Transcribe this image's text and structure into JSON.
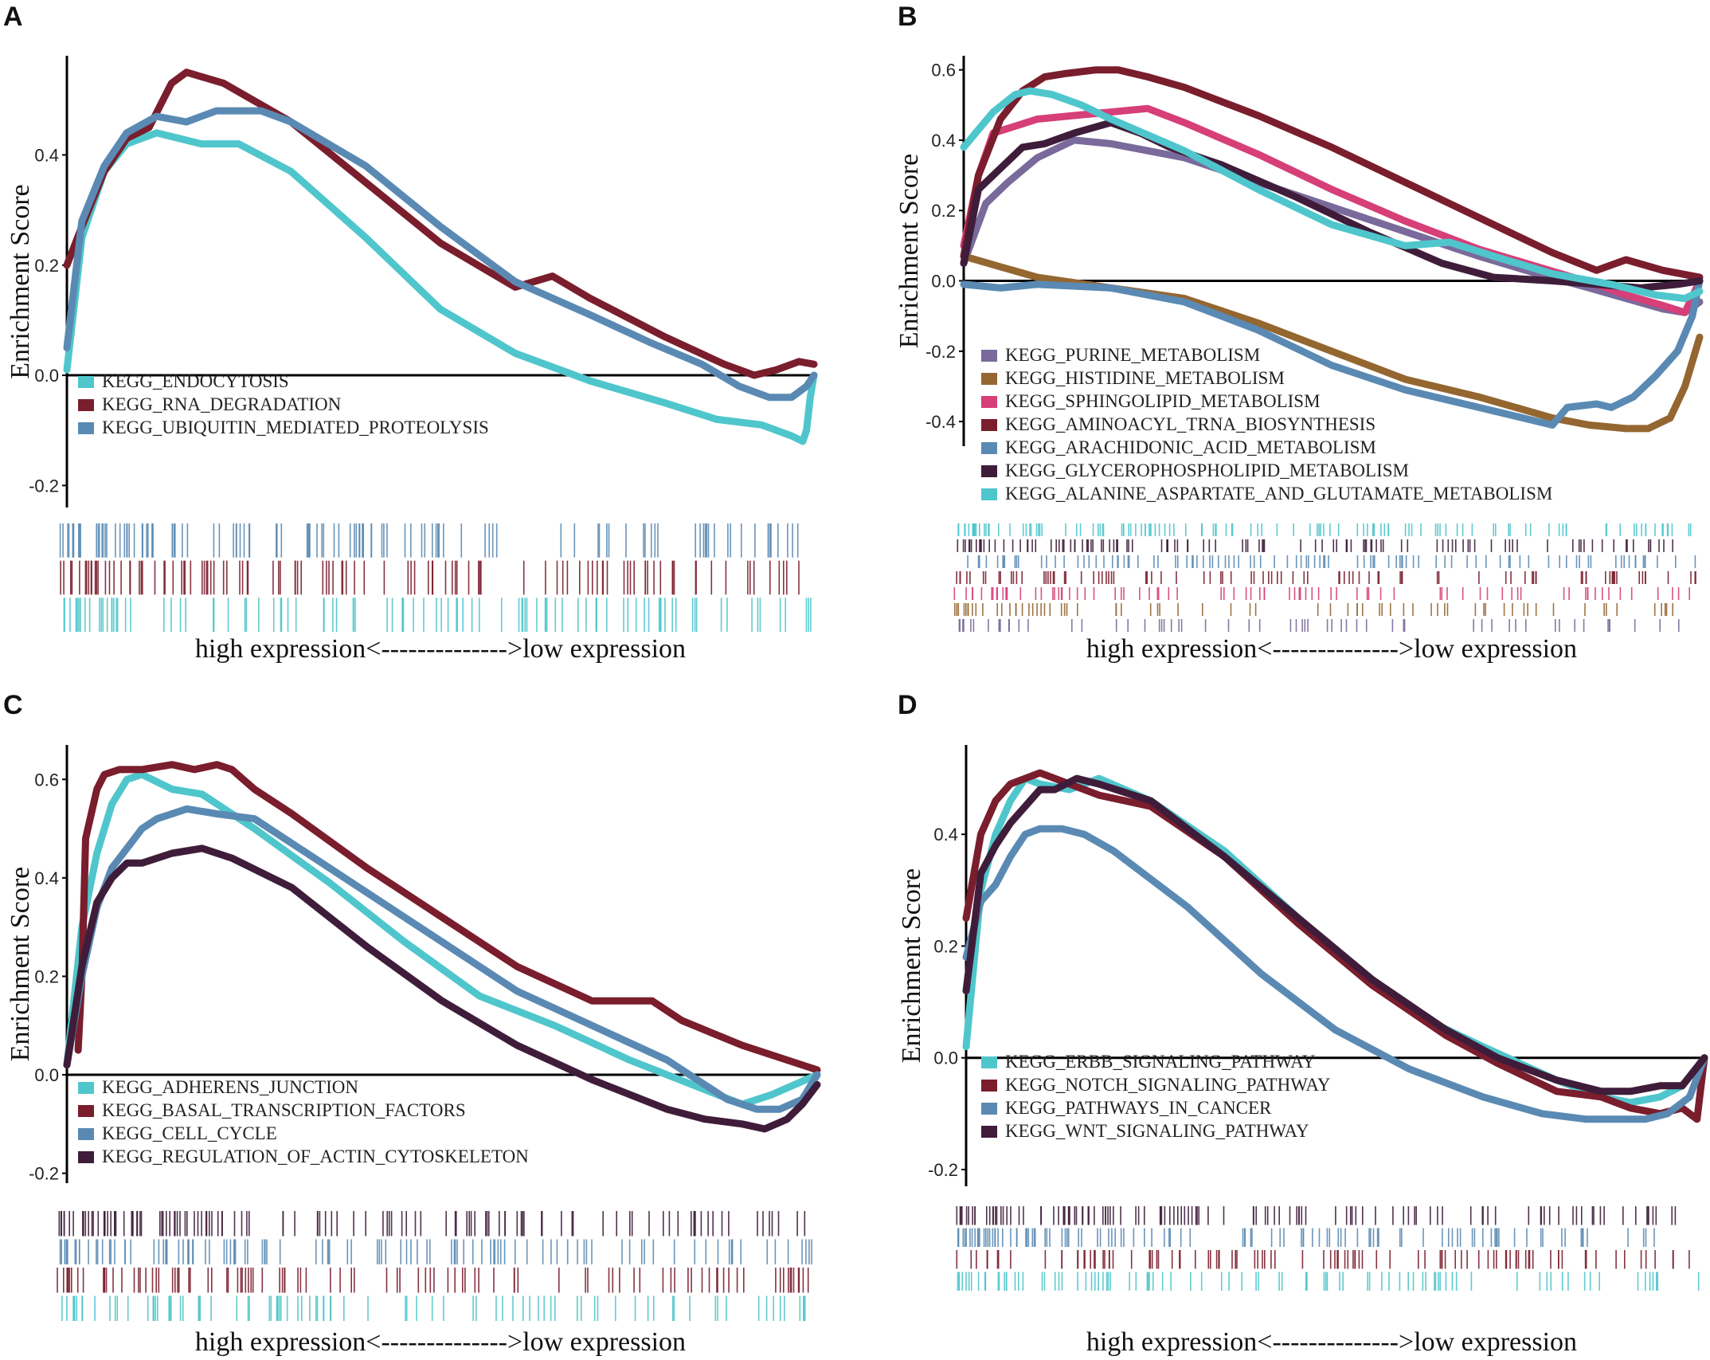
{
  "figure": {
    "colors": {
      "cyan": "#4fc6cc",
      "maroon": "#7a1d2c",
      "steel": "#5a8ab3",
      "purple": "#7a6a9b",
      "brown": "#946630",
      "pink": "#d63f78",
      "darkplum": "#3f1d3a",
      "axis": "#000000"
    }
  },
  "chart_data": [
    {
      "panel": "A",
      "type": "line",
      "ylabel": "Enrichment Score",
      "bottom_caption": "high expression<-------------->low expression",
      "ylim": [
        -0.24,
        0.58
      ],
      "yticks": [
        {
          "v": 0.4,
          "label": "0.4"
        },
        {
          "v": 0.2,
          "label": "0.2"
        },
        {
          "v": 0.0,
          "label": "0.0"
        },
        {
          "v": -0.2,
          "label": "-0.2"
        }
      ],
      "x_range": [
        0,
        1
      ],
      "legend_position": "bottom-left",
      "series": [
        {
          "name": "KEGG_ENDOCYTOSIS",
          "color": "cyan",
          "x": [
            0,
            0.02,
            0.05,
            0.08,
            0.12,
            0.18,
            0.23,
            0.3,
            0.4,
            0.5,
            0.6,
            0.7,
            0.8,
            0.87,
            0.93,
            0.97,
            0.985,
            0.99,
            0.995,
            1.0
          ],
          "y": [
            0.01,
            0.25,
            0.37,
            0.42,
            0.44,
            0.42,
            0.42,
            0.37,
            0.25,
            0.12,
            0.04,
            -0.01,
            -0.05,
            -0.08,
            -0.09,
            -0.11,
            -0.12,
            -0.1,
            -0.04,
            0.0
          ]
        },
        {
          "name": "KEGG_RNA_DEGRADATION",
          "color": "maroon",
          "x": [
            0,
            0.02,
            0.05,
            0.08,
            0.11,
            0.14,
            0.16,
            0.21,
            0.3,
            0.4,
            0.5,
            0.6,
            0.65,
            0.7,
            0.8,
            0.88,
            0.92,
            0.95,
            0.98,
            1.0
          ],
          "y": [
            0.2,
            0.27,
            0.37,
            0.43,
            0.45,
            0.53,
            0.55,
            0.53,
            0.46,
            0.35,
            0.24,
            0.16,
            0.18,
            0.14,
            0.07,
            0.02,
            0.0,
            0.01,
            0.025,
            0.02
          ]
        },
        {
          "name": "KEGG_UBIQUITIN_MEDIATED_PROTEOLYSIS",
          "color": "steel",
          "x": [
            0,
            0.02,
            0.05,
            0.08,
            0.12,
            0.16,
            0.2,
            0.26,
            0.3,
            0.4,
            0.5,
            0.6,
            0.7,
            0.78,
            0.85,
            0.9,
            0.94,
            0.97,
            0.99,
            1.0
          ],
          "y": [
            0.05,
            0.28,
            0.38,
            0.44,
            0.47,
            0.46,
            0.48,
            0.48,
            0.46,
            0.38,
            0.27,
            0.17,
            0.11,
            0.06,
            0.02,
            -0.02,
            -0.04,
            -0.04,
            -0.02,
            0.0
          ]
        }
      ]
    },
    {
      "panel": "B",
      "type": "line",
      "ylabel": "Enrichment Score",
      "bottom_caption": "high expression<-------------->low expression",
      "ylim": [
        -0.47,
        0.64
      ],
      "yticks": [
        {
          "v": 0.6,
          "label": "0.6"
        },
        {
          "v": 0.4,
          "label": "0.4"
        },
        {
          "v": 0.2,
          "label": "0.2"
        },
        {
          "v": 0.0,
          "label": "0.0"
        },
        {
          "v": -0.2,
          "label": "-0.2"
        },
        {
          "v": -0.4,
          "label": "-0.4"
        }
      ],
      "x_range": [
        0,
        1
      ],
      "legend_position": "bottom-left",
      "series": [
        {
          "name": "KEGG_PURINE_METABOLISM",
          "color": "purple",
          "x": [
            0,
            0.03,
            0.06,
            0.1,
            0.15,
            0.2,
            0.25,
            0.3,
            0.4,
            0.5,
            0.6,
            0.7,
            0.78,
            0.85,
            0.9,
            0.95,
            0.98,
            1.0
          ],
          "y": [
            0.05,
            0.22,
            0.28,
            0.35,
            0.4,
            0.39,
            0.37,
            0.35,
            0.28,
            0.21,
            0.14,
            0.07,
            0.02,
            -0.02,
            -0.05,
            -0.08,
            -0.09,
            -0.06
          ]
        },
        {
          "name": "KEGG_HISTIDINE_METABOLISM",
          "color": "brown",
          "x": [
            0,
            0.05,
            0.1,
            0.2,
            0.3,
            0.4,
            0.5,
            0.6,
            0.7,
            0.75,
            0.8,
            0.85,
            0.9,
            0.93,
            0.96,
            0.98,
            1.0
          ],
          "y": [
            0.07,
            0.04,
            0.01,
            -0.02,
            -0.05,
            -0.12,
            -0.2,
            -0.28,
            -0.33,
            -0.36,
            -0.39,
            -0.41,
            -0.42,
            -0.42,
            -0.39,
            -0.3,
            -0.16
          ]
        },
        {
          "name": "KEGG_SPHINGOLIPID_METABOLISM",
          "color": "pink",
          "x": [
            0,
            0.02,
            0.04,
            0.07,
            0.1,
            0.15,
            0.2,
            0.25,
            0.3,
            0.4,
            0.5,
            0.6,
            0.7,
            0.78,
            0.86,
            0.9,
            0.95,
            0.98,
            1.0
          ],
          "y": [
            0.1,
            0.3,
            0.42,
            0.44,
            0.46,
            0.47,
            0.48,
            0.49,
            0.45,
            0.36,
            0.26,
            0.17,
            0.09,
            0.04,
            -0.01,
            -0.04,
            -0.07,
            -0.09,
            0.0
          ]
        },
        {
          "name": "KEGG_AMINOACYL_TRNA_BIOSYNTHESIS",
          "color": "maroon",
          "x": [
            0,
            0.02,
            0.05,
            0.08,
            0.11,
            0.14,
            0.18,
            0.21,
            0.25,
            0.3,
            0.4,
            0.5,
            0.6,
            0.7,
            0.8,
            0.86,
            0.9,
            0.95,
            1.0
          ],
          "y": [
            0.07,
            0.3,
            0.46,
            0.54,
            0.58,
            0.59,
            0.6,
            0.6,
            0.58,
            0.55,
            0.47,
            0.38,
            0.28,
            0.18,
            0.08,
            0.03,
            0.06,
            0.03,
            0.01
          ]
        },
        {
          "name": "KEGG_ARACHIDONIC_ACID_METABOLISM",
          "color": "steel",
          "x": [
            0,
            0.05,
            0.1,
            0.2,
            0.3,
            0.4,
            0.5,
            0.6,
            0.7,
            0.8,
            0.82,
            0.86,
            0.88,
            0.91,
            0.94,
            0.97,
            0.99,
            1.0
          ],
          "y": [
            -0.01,
            -0.02,
            -0.01,
            -0.02,
            -0.06,
            -0.14,
            -0.24,
            -0.31,
            -0.36,
            -0.41,
            -0.36,
            -0.35,
            -0.36,
            -0.33,
            -0.27,
            -0.2,
            -0.1,
            0.0
          ]
        },
        {
          "name": "KEGG_GLYCEROPHOSPHOLIPID_METABOLISM",
          "color": "darkplum",
          "x": [
            0,
            0.02,
            0.05,
            0.08,
            0.11,
            0.15,
            0.2,
            0.24,
            0.28,
            0.35,
            0.45,
            0.55,
            0.65,
            0.72,
            0.8,
            0.86,
            0.92,
            0.97,
            1.0
          ],
          "y": [
            0.05,
            0.26,
            0.32,
            0.38,
            0.39,
            0.42,
            0.45,
            0.42,
            0.38,
            0.33,
            0.24,
            0.14,
            0.05,
            0.01,
            0.0,
            -0.01,
            -0.02,
            -0.01,
            0.0
          ]
        },
        {
          "name": "KEGG_ALANINE_ASPARTATE_AND_GLUTAMATE_METABOLISM",
          "color": "cyan",
          "x": [
            0,
            0.02,
            0.04,
            0.07,
            0.09,
            0.12,
            0.16,
            0.2,
            0.3,
            0.4,
            0.5,
            0.6,
            0.66,
            0.72,
            0.8,
            0.88,
            0.94,
            0.98,
            1.0
          ],
          "y": [
            0.38,
            0.43,
            0.48,
            0.53,
            0.54,
            0.53,
            0.5,
            0.46,
            0.37,
            0.26,
            0.16,
            0.1,
            0.11,
            0.07,
            0.02,
            -0.01,
            -0.04,
            -0.05,
            -0.03
          ]
        }
      ]
    },
    {
      "panel": "C",
      "type": "line",
      "ylabel": "Enrichment Score",
      "bottom_caption": "high expression<-------------->low expression",
      "ylim": [
        -0.22,
        0.67
      ],
      "yticks": [
        {
          "v": 0.6,
          "label": "0.6"
        },
        {
          "v": 0.4,
          "label": "0.4"
        },
        {
          "v": 0.2,
          "label": "0.2"
        },
        {
          "v": 0.0,
          "label": "0.0"
        },
        {
          "v": -0.2,
          "label": "-0.2"
        }
      ],
      "x_range": [
        0,
        1
      ],
      "legend_position": "bottom-left",
      "series": [
        {
          "name": "KEGG_ADHERENS_JUNCTION",
          "color": "cyan",
          "x": [
            0,
            0.02,
            0.04,
            0.06,
            0.08,
            0.1,
            0.14,
            0.18,
            0.25,
            0.35,
            0.45,
            0.55,
            0.65,
            0.75,
            0.85,
            0.9,
            0.94,
            0.97,
            1.0
          ],
          "y": [
            0.02,
            0.3,
            0.45,
            0.55,
            0.6,
            0.61,
            0.58,
            0.57,
            0.5,
            0.39,
            0.27,
            0.16,
            0.1,
            0.03,
            -0.03,
            -0.06,
            -0.04,
            -0.02,
            0.0
          ]
        },
        {
          "name": "KEGG_BASAL_TRANSCRIPTION_FACTORS",
          "color": "maroon",
          "x": [
            0.015,
            0.02,
            0.025,
            0.04,
            0.05,
            0.07,
            0.1,
            0.14,
            0.17,
            0.2,
            0.22,
            0.25,
            0.3,
            0.4,
            0.5,
            0.6,
            0.7,
            0.78,
            0.82,
            0.9,
            1.0
          ],
          "y": [
            0.05,
            0.2,
            0.48,
            0.58,
            0.61,
            0.62,
            0.62,
            0.63,
            0.62,
            0.63,
            0.62,
            0.58,
            0.53,
            0.42,
            0.32,
            0.22,
            0.15,
            0.15,
            0.11,
            0.06,
            0.01
          ]
        },
        {
          "name": "KEGG_CELL_CYCLE",
          "color": "steel",
          "x": [
            0,
            0.02,
            0.04,
            0.06,
            0.08,
            0.1,
            0.12,
            0.16,
            0.2,
            0.25,
            0.3,
            0.4,
            0.5,
            0.6,
            0.7,
            0.8,
            0.88,
            0.92,
            0.95,
            0.98,
            1.0
          ],
          "y": [
            0.02,
            0.2,
            0.34,
            0.42,
            0.46,
            0.5,
            0.52,
            0.54,
            0.53,
            0.52,
            0.47,
            0.37,
            0.27,
            0.17,
            0.1,
            0.03,
            -0.05,
            -0.07,
            -0.07,
            -0.05,
            0.0
          ]
        },
        {
          "name": "KEGG_REGULATION_OF_ACTIN_CYTOSKELETON",
          "color": "darkplum",
          "x": [
            0,
            0.02,
            0.04,
            0.06,
            0.08,
            0.1,
            0.14,
            0.18,
            0.22,
            0.3,
            0.4,
            0.5,
            0.6,
            0.7,
            0.8,
            0.85,
            0.9,
            0.93,
            0.96,
            0.98,
            1.0
          ],
          "y": [
            0.02,
            0.22,
            0.35,
            0.4,
            0.43,
            0.43,
            0.45,
            0.46,
            0.44,
            0.38,
            0.26,
            0.15,
            0.06,
            -0.01,
            -0.07,
            -0.09,
            -0.1,
            -0.11,
            -0.09,
            -0.06,
            -0.02
          ]
        }
      ]
    },
    {
      "panel": "D",
      "type": "line",
      "ylabel": "Enrichment Score",
      "bottom_caption": "high expression<-------------->low expression",
      "ylim": [
        -0.23,
        0.56
      ],
      "yticks": [
        {
          "v": 0.4,
          "label": "0.4"
        },
        {
          "v": 0.2,
          "label": "0.2"
        },
        {
          "v": 0.0,
          "label": "0.0"
        },
        {
          "v": -0.2,
          "label": "-0.2"
        }
      ],
      "x_range": [
        0,
        1
      ],
      "legend_position": "bottom-left",
      "series": [
        {
          "name": "KEGG_ERBB_SIGNALING_PATHWAY",
          "color": "cyan",
          "x": [
            0,
            0.02,
            0.04,
            0.06,
            0.08,
            0.1,
            0.14,
            0.18,
            0.25,
            0.35,
            0.45,
            0.55,
            0.62,
            0.7,
            0.8,
            0.86,
            0.9,
            0.94,
            0.97,
            1.0
          ],
          "y": [
            0.02,
            0.3,
            0.4,
            0.46,
            0.5,
            0.49,
            0.48,
            0.5,
            0.46,
            0.37,
            0.25,
            0.14,
            0.07,
            0.02,
            -0.04,
            -0.07,
            -0.08,
            -0.07,
            -0.05,
            0.0
          ]
        },
        {
          "name": "KEGG_NOTCH_SIGNALING_PATHWAY",
          "color": "maroon",
          "x": [
            0,
            0.02,
            0.04,
            0.06,
            0.08,
            0.1,
            0.14,
            0.18,
            0.25,
            0.35,
            0.45,
            0.55,
            0.65,
            0.72,
            0.8,
            0.86,
            0.9,
            0.94,
            0.97,
            0.99,
            1.0
          ],
          "y": [
            0.25,
            0.4,
            0.46,
            0.49,
            0.5,
            0.51,
            0.49,
            0.47,
            0.45,
            0.36,
            0.24,
            0.13,
            0.04,
            -0.01,
            -0.06,
            -0.07,
            -0.09,
            -0.1,
            -0.09,
            -0.11,
            0.0
          ]
        },
        {
          "name": "KEGG_PATHWAYS_IN_CANCER",
          "color": "steel",
          "x": [
            0,
            0.02,
            0.04,
            0.06,
            0.08,
            0.1,
            0.13,
            0.16,
            0.2,
            0.3,
            0.4,
            0.5,
            0.6,
            0.7,
            0.78,
            0.84,
            0.88,
            0.92,
            0.95,
            0.98,
            1.0
          ],
          "y": [
            0.18,
            0.28,
            0.31,
            0.36,
            0.4,
            0.41,
            0.41,
            0.4,
            0.37,
            0.27,
            0.15,
            0.05,
            -0.02,
            -0.07,
            -0.1,
            -0.11,
            -0.11,
            -0.11,
            -0.1,
            -0.07,
            0.0
          ]
        },
        {
          "name": "KEGG_WNT_SIGNALING_PATHWAY",
          "color": "darkplum",
          "x": [
            0,
            0.02,
            0.04,
            0.06,
            0.08,
            0.1,
            0.12,
            0.15,
            0.18,
            0.25,
            0.35,
            0.45,
            0.55,
            0.65,
            0.72,
            0.8,
            0.86,
            0.9,
            0.94,
            0.97,
            1.0
          ],
          "y": [
            0.12,
            0.33,
            0.38,
            0.42,
            0.45,
            0.48,
            0.48,
            0.5,
            0.49,
            0.46,
            0.36,
            0.25,
            0.14,
            0.05,
            0.0,
            -0.04,
            -0.06,
            -0.06,
            -0.05,
            -0.05,
            0.0
          ]
        }
      ]
    }
  ]
}
